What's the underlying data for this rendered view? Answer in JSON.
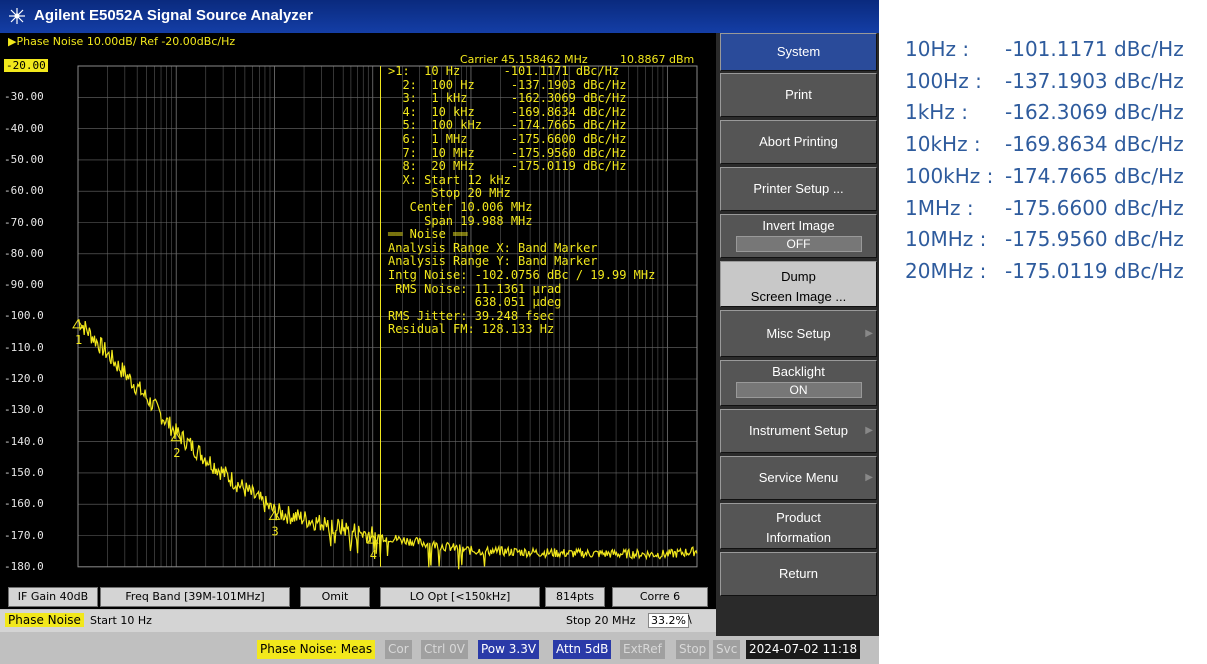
{
  "window": {
    "title": "Agilent E5052A Signal Source Analyzer"
  },
  "trace": {
    "header": "Phase Noise 10.00dB/ Ref -20.00dBc/Hz",
    "carrier_label": "Carrier 45.158462 MHz",
    "carrier_power": "10.8867 dBm",
    "y_labels": [
      "-20.00",
      "-30.00",
      "-40.00",
      "-50.00",
      "-60.00",
      "-70.00",
      "-80.00",
      "-90.00",
      "-100.0",
      "-110.0",
      "-120.0",
      "-130.0",
      "-140.0",
      "-150.0",
      "-160.0",
      "-170.0",
      "-180.0"
    ],
    "marker_lines": [
      ">1:  10 Hz      -101.1171 dBc/Hz",
      "  2:  100 Hz     -137.1903 dBc/Hz",
      "  3:  1 kHz      -162.3069 dBc/Hz",
      "  4:  10 kHz     -169.8634 dBc/Hz",
      "  5:  100 kHz    -174.7665 dBc/Hz",
      "  6:  1 MHz      -175.6600 dBc/Hz",
      "  7:  10 MHz     -175.9560 dBc/Hz",
      "  8:  20 MHz     -175.0119 dBc/Hz",
      "  X: Start 12 kHz",
      "      Stop 20 MHz",
      "   Center 10.006 MHz",
      "     Span 19.988 MHz",
      "══ Noise ══",
      "Analysis Range X: Band Marker",
      "Analysis Range Y: Band Marker",
      "Intg Noise: -102.0756 dBc / 19.99 MHz",
      " RMS Noise: 11.1361 µrad",
      "            638.051 µdeg",
      "RMS Jitter: 39.248 fsec",
      "Residual FM: 128.133 Hz"
    ],
    "marker_numbers": [
      "1",
      "2",
      "3",
      "4"
    ]
  },
  "status_row": [
    "IF Gain 40dB",
    "Freq Band [39M-101MHz]",
    "Omit",
    "LO Opt [<150kHz]",
    "814pts",
    "Corre 6"
  ],
  "bottom_bar": {
    "mode": "Phase Noise",
    "start": "Start 10 Hz",
    "stop": "Stop 20 MHz",
    "percent": "33.2%",
    "bar": "\\"
  },
  "footer": {
    "meas": "Phase Noise: Meas",
    "cor": "Cor",
    "ctrl": "Ctrl 0V",
    "pow": "Pow 3.3V",
    "attn": "Attn 5dB",
    "extref": "ExtRef",
    "stop": "Stop",
    "svc": "Svc",
    "datetime": "2024-07-02 11:18"
  },
  "softkeys": {
    "system": "System",
    "print": "Print",
    "abort": "Abort Printing",
    "printer_setup": "Printer Setup ...",
    "invert_image": "Invert Image",
    "invert_value": "OFF",
    "dump_line1": "Dump",
    "dump_line2": "Screen Image ...",
    "misc_setup": "Misc Setup",
    "backlight": "Backlight",
    "backlight_value": "ON",
    "instrument_setup": "Instrument Setup",
    "service_menu": "Service Menu",
    "product_line1": "Product",
    "product_line2": "Information",
    "return": "Return"
  },
  "values": [
    {
      "freq": "10Hz :",
      "value": "-101.1171 dBc/Hz"
    },
    {
      "freq": "100Hz :",
      "value": "-137.1903 dBc/Hz"
    },
    {
      "freq": "1kHz :",
      "value": "-162.3069 dBc/Hz"
    },
    {
      "freq": "10kHz :",
      "value": "-169.8634 dBc/Hz"
    },
    {
      "freq": "100kHz :",
      "value": "-174.7665 dBc/Hz"
    },
    {
      "freq": "1MHz :",
      "value": "-175.6600 dBc/Hz"
    },
    {
      "freq": "10MHz :",
      "value": "-175.9560 dBc/Hz"
    },
    {
      "freq": "20MHz :",
      "value": "-175.0119 dBc/Hz"
    }
  ],
  "colors": {
    "trace": "#f2e81c",
    "value_text": "#2e5b9d",
    "grid": "#6a6a6a"
  }
}
